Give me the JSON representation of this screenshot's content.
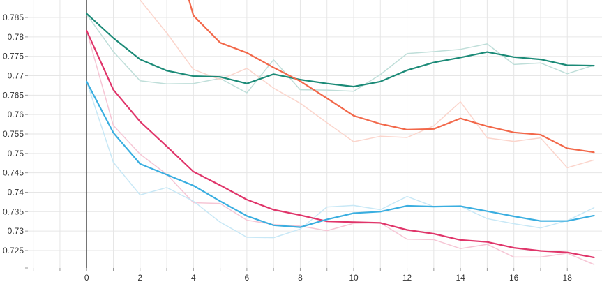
{
  "chart_data": {
    "type": "line",
    "title": "",
    "xlabel": "",
    "ylabel": "",
    "xlim": [
      -2.2,
      19.3
    ],
    "ylim": [
      0.7205,
      0.7895
    ],
    "x_ticks": [
      "0",
      "2",
      "4",
      "6",
      "8",
      "10",
      "12",
      "14",
      "16",
      "18"
    ],
    "y_ticks": [
      "0.725",
      "0.73",
      "0.735",
      "0.74",
      "0.745",
      "0.75",
      "0.755",
      "0.76",
      "0.765",
      "0.77",
      "0.775",
      "0.78",
      "0.785"
    ],
    "grid": true,
    "legend": "none",
    "x": [
      0,
      1,
      2,
      3,
      4,
      5,
      6,
      7,
      8,
      9,
      10,
      11,
      12,
      13,
      14,
      15,
      16,
      17,
      18,
      19
    ],
    "series": [
      {
        "color": "#1b8a77",
        "smoothed": [
          0.786,
          0.7797,
          0.7742,
          0.7713,
          0.7699,
          0.7697,
          0.768,
          0.7704,
          0.769,
          0.768,
          0.7672,
          0.7685,
          0.7714,
          0.7734,
          0.7747,
          0.7761,
          0.7748,
          0.7742,
          0.7727,
          0.7726
        ],
        "raw": [
          0.7858,
          0.7762,
          0.7687,
          0.7679,
          0.768,
          0.7693,
          0.7656,
          0.7741,
          0.7664,
          0.7663,
          0.766,
          0.7703,
          0.7757,
          0.7762,
          0.7768,
          0.7782,
          0.7729,
          0.7733,
          0.7705,
          0.7727
        ]
      },
      {
        "color": "#f2684a",
        "smoothed": [
          null,
          null,
          null,
          null,
          0.7855,
          0.7785,
          0.7759,
          0.7721,
          0.7686,
          0.7642,
          0.7597,
          0.7576,
          0.7561,
          0.7563,
          0.759,
          0.757,
          0.7554,
          0.7548,
          0.7513,
          0.7503
        ],
        "raw": [
          null,
          null,
          0.7895,
          0.781,
          0.7716,
          0.769,
          0.7719,
          0.7668,
          0.7629,
          0.7579,
          0.753,
          0.7544,
          0.7541,
          0.7571,
          0.7633,
          0.754,
          0.7531,
          0.754,
          0.7463,
          0.7483
        ]
      },
      {
        "color": "#e0356a",
        "smoothed": [
          0.7816,
          0.7664,
          0.7582,
          0.7518,
          0.7453,
          0.7418,
          0.7381,
          0.7355,
          0.7341,
          0.7325,
          0.7323,
          0.7321,
          0.7303,
          0.7293,
          0.7277,
          0.7272,
          0.7257,
          0.7249,
          0.7245,
          0.7232
        ],
        "raw": [
          0.7816,
          0.7572,
          0.7498,
          0.7446,
          0.7373,
          0.7371,
          0.7328,
          0.7317,
          0.7313,
          0.7301,
          0.732,
          0.7321,
          0.7279,
          0.7278,
          0.7255,
          0.7266,
          0.7233,
          0.7233,
          0.7243,
          0.7214
        ]
      },
      {
        "color": "#3aaee0",
        "smoothed": [
          0.7685,
          0.7553,
          0.7473,
          0.7445,
          0.7417,
          0.7377,
          0.7339,
          0.7315,
          0.731,
          0.733,
          0.7346,
          0.735,
          0.7365,
          0.7363,
          0.7364,
          0.7351,
          0.7338,
          0.7326,
          0.7326,
          0.734
        ],
        "raw": [
          0.7685,
          0.7477,
          0.7393,
          0.7412,
          0.7377,
          0.7323,
          0.7284,
          0.7283,
          0.7305,
          0.7362,
          0.7366,
          0.7355,
          0.7389,
          0.7363,
          0.7364,
          0.7332,
          0.7319,
          0.7308,
          0.7327,
          0.736
        ]
      }
    ]
  }
}
